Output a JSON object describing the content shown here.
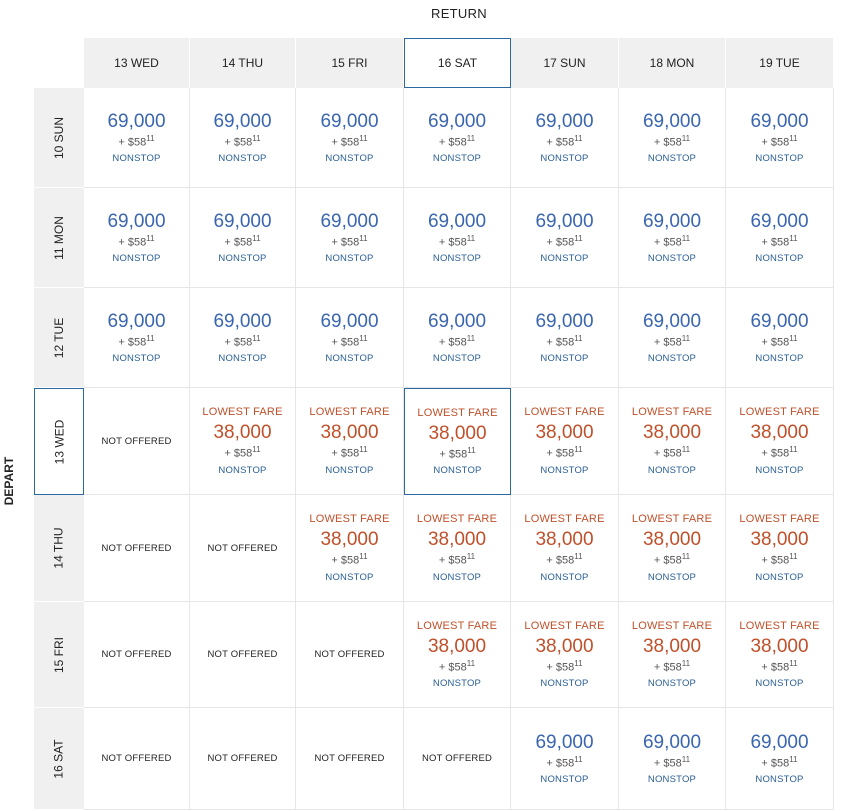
{
  "return_label": "RETURN",
  "depart_label": "DEPART",
  "return_dates": [
    "13 WED",
    "14 THU",
    "15 FRI",
    "16 SAT",
    "17 SUN",
    "18 MON",
    "19 TUE"
  ],
  "depart_dates": [
    "10 SUN",
    "11 MON",
    "12 TUE",
    "13 WED",
    "14 THU",
    "15 FRI",
    "16 SAT"
  ],
  "selected_return_index": 3,
  "selected_depart_index": 3,
  "colors": {
    "regular": "#3a66b0",
    "lowest": "#c0502a",
    "selected_border": "#2a6aa0"
  },
  "fares": [
    [
      {
        "status": "offered",
        "miles": "69,000",
        "tax": "+ $58",
        "cents": "11",
        "stop": "NONSTOP"
      },
      {
        "status": "offered",
        "miles": "69,000",
        "tax": "+ $58",
        "cents": "11",
        "stop": "NONSTOP"
      },
      {
        "status": "offered",
        "miles": "69,000",
        "tax": "+ $58",
        "cents": "11",
        "stop": "NONSTOP"
      },
      {
        "status": "offered",
        "miles": "69,000",
        "tax": "+ $58",
        "cents": "11",
        "stop": "NONSTOP"
      },
      {
        "status": "offered",
        "miles": "69,000",
        "tax": "+ $58",
        "cents": "11",
        "stop": "NONSTOP"
      },
      {
        "status": "offered",
        "miles": "69,000",
        "tax": "+ $58",
        "cents": "11",
        "stop": "NONSTOP"
      },
      {
        "status": "offered",
        "miles": "69,000",
        "tax": "+ $58",
        "cents": "11",
        "stop": "NONSTOP"
      }
    ],
    [
      {
        "status": "offered",
        "miles": "69,000",
        "tax": "+ $58",
        "cents": "11",
        "stop": "NONSTOP"
      },
      {
        "status": "offered",
        "miles": "69,000",
        "tax": "+ $58",
        "cents": "11",
        "stop": "NONSTOP"
      },
      {
        "status": "offered",
        "miles": "69,000",
        "tax": "+ $58",
        "cents": "11",
        "stop": "NONSTOP"
      },
      {
        "status": "offered",
        "miles": "69,000",
        "tax": "+ $58",
        "cents": "11",
        "stop": "NONSTOP"
      },
      {
        "status": "offered",
        "miles": "69,000",
        "tax": "+ $58",
        "cents": "11",
        "stop": "NONSTOP"
      },
      {
        "status": "offered",
        "miles": "69,000",
        "tax": "+ $58",
        "cents": "11",
        "stop": "NONSTOP"
      },
      {
        "status": "offered",
        "miles": "69,000",
        "tax": "+ $58",
        "cents": "11",
        "stop": "NONSTOP"
      }
    ],
    [
      {
        "status": "offered",
        "miles": "69,000",
        "tax": "+ $58",
        "cents": "11",
        "stop": "NONSTOP"
      },
      {
        "status": "offered",
        "miles": "69,000",
        "tax": "+ $58",
        "cents": "11",
        "stop": "NONSTOP"
      },
      {
        "status": "offered",
        "miles": "69,000",
        "tax": "+ $58",
        "cents": "11",
        "stop": "NONSTOP"
      },
      {
        "status": "offered",
        "miles": "69,000",
        "tax": "+ $58",
        "cents": "11",
        "stop": "NONSTOP"
      },
      {
        "status": "offered",
        "miles": "69,000",
        "tax": "+ $58",
        "cents": "11",
        "stop": "NONSTOP"
      },
      {
        "status": "offered",
        "miles": "69,000",
        "tax": "+ $58",
        "cents": "11",
        "stop": "NONSTOP"
      },
      {
        "status": "offered",
        "miles": "69,000",
        "tax": "+ $58",
        "cents": "11",
        "stop": "NONSTOP"
      }
    ],
    [
      {
        "status": "not_offered",
        "label": "NOT OFFERED"
      },
      {
        "status": "offered",
        "badge": "LOWEST FARE",
        "miles": "38,000",
        "tax": "+ $58",
        "cents": "11",
        "stop": "NONSTOP"
      },
      {
        "status": "offered",
        "badge": "LOWEST FARE",
        "miles": "38,000",
        "tax": "+ $58",
        "cents": "11",
        "stop": "NONSTOP"
      },
      {
        "status": "offered",
        "badge": "LOWEST FARE",
        "miles": "38,000",
        "tax": "+ $58",
        "cents": "11",
        "stop": "NONSTOP"
      },
      {
        "status": "offered",
        "badge": "LOWEST FARE",
        "miles": "38,000",
        "tax": "+ $58",
        "cents": "11",
        "stop": "NONSTOP"
      },
      {
        "status": "offered",
        "badge": "LOWEST FARE",
        "miles": "38,000",
        "tax": "+ $58",
        "cents": "11",
        "stop": "NONSTOP"
      },
      {
        "status": "offered",
        "badge": "LOWEST FARE",
        "miles": "38,000",
        "tax": "+ $58",
        "cents": "11",
        "stop": "NONSTOP"
      }
    ],
    [
      {
        "status": "not_offered",
        "label": "NOT OFFERED"
      },
      {
        "status": "not_offered",
        "label": "NOT OFFERED"
      },
      {
        "status": "offered",
        "badge": "LOWEST FARE",
        "miles": "38,000",
        "tax": "+ $58",
        "cents": "11",
        "stop": "NONSTOP"
      },
      {
        "status": "offered",
        "badge": "LOWEST FARE",
        "miles": "38,000",
        "tax": "+ $58",
        "cents": "11",
        "stop": "NONSTOP"
      },
      {
        "status": "offered",
        "badge": "LOWEST FARE",
        "miles": "38,000",
        "tax": "+ $58",
        "cents": "11",
        "stop": "NONSTOP"
      },
      {
        "status": "offered",
        "badge": "LOWEST FARE",
        "miles": "38,000",
        "tax": "+ $58",
        "cents": "11",
        "stop": "NONSTOP"
      },
      {
        "status": "offered",
        "badge": "LOWEST FARE",
        "miles": "38,000",
        "tax": "+ $58",
        "cents": "11",
        "stop": "NONSTOP"
      }
    ],
    [
      {
        "status": "not_offered",
        "label": "NOT OFFERED"
      },
      {
        "status": "not_offered",
        "label": "NOT OFFERED"
      },
      {
        "status": "not_offered",
        "label": "NOT OFFERED"
      },
      {
        "status": "offered",
        "badge": "LOWEST FARE",
        "miles": "38,000",
        "tax": "+ $58",
        "cents": "11",
        "stop": "NONSTOP"
      },
      {
        "status": "offered",
        "badge": "LOWEST FARE",
        "miles": "38,000",
        "tax": "+ $58",
        "cents": "11",
        "stop": "NONSTOP"
      },
      {
        "status": "offered",
        "badge": "LOWEST FARE",
        "miles": "38,000",
        "tax": "+ $58",
        "cents": "11",
        "stop": "NONSTOP"
      },
      {
        "status": "offered",
        "badge": "LOWEST FARE",
        "miles": "38,000",
        "tax": "+ $58",
        "cents": "11",
        "stop": "NONSTOP"
      }
    ],
    [
      {
        "status": "not_offered",
        "label": "NOT OFFERED"
      },
      {
        "status": "not_offered",
        "label": "NOT OFFERED"
      },
      {
        "status": "not_offered",
        "label": "NOT OFFERED"
      },
      {
        "status": "not_offered",
        "label": "NOT OFFERED"
      },
      {
        "status": "offered",
        "miles": "69,000",
        "tax": "+ $58",
        "cents": "11",
        "stop": "NONSTOP"
      },
      {
        "status": "offered",
        "miles": "69,000",
        "tax": "+ $58",
        "cents": "11",
        "stop": "NONSTOP"
      },
      {
        "status": "offered",
        "miles": "69,000",
        "tax": "+ $58",
        "cents": "11",
        "stop": "NONSTOP"
      }
    ]
  ]
}
